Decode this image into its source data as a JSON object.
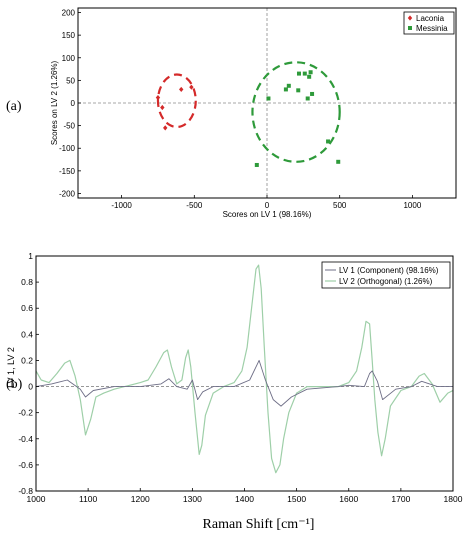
{
  "panel_labels": [
    "(a)",
    "(b)"
  ],
  "colors": {
    "laconia": "#d42a2a",
    "messinia": "#2e9a3a",
    "lv1": "#6e6e86",
    "lv2": "#9ecfa8",
    "axis": "#000000",
    "zero_line": "#8a8a8a"
  },
  "chart_data": [
    {
      "type": "scatter",
      "xlabel": "Scores on LV 1 (98.16%)",
      "ylabel": "Scores on LV 2 (1.26%)",
      "xlim": [
        -1300,
        1300
      ],
      "ylim": [
        -210,
        210
      ],
      "xticks": [
        -1000,
        -500,
        0,
        500,
        1000
      ],
      "yticks": [
        200,
        150,
        100,
        50,
        0,
        -50,
        -100,
        -150,
        -200
      ],
      "legend": {
        "position": "top-right",
        "entries": [
          "Laconia",
          "Messinia"
        ]
      },
      "series": [
        {
          "name": "Laconia",
          "marker": "diamond",
          "points": [
            [
              -590,
              30
            ],
            [
              -520,
              35
            ],
            [
              -720,
              -10
            ],
            [
              -750,
              12
            ],
            [
              -700,
              -55
            ]
          ]
        },
        {
          "name": "Messinia",
          "marker": "square",
          "points": [
            [
              10,
              10
            ],
            [
              130,
              30
            ],
            [
              150,
              38
            ],
            [
              220,
              65
            ],
            [
              260,
              65
            ],
            [
              290,
              58
            ],
            [
              300,
              68
            ],
            [
              215,
              28
            ],
            [
              280,
              10
            ],
            [
              310,
              20
            ],
            [
              420,
              -85
            ],
            [
              490,
              -130
            ],
            [
              -70,
              -137
            ]
          ]
        }
      ],
      "confidence_ellipses": [
        {
          "series": "Laconia",
          "center": [
            -620,
            5
          ],
          "semi_axes": [
            130,
            58
          ]
        },
        {
          "series": "Messinia",
          "center": [
            200,
            -20
          ],
          "semi_axes": [
            300,
            110
          ]
        }
      ]
    },
    {
      "type": "line",
      "xlabel": "Raman Shift [cm⁻¹]",
      "ylabel": "LV 1, LV 2",
      "xlim": [
        1000,
        1800
      ],
      "ylim": [
        -0.8,
        1.0
      ],
      "xticks": [
        1000,
        1100,
        1200,
        1300,
        1400,
        1500,
        1600,
        1700,
        1800
      ],
      "yticks": [
        1,
        0.8,
        0.6,
        0.4,
        0.2,
        0,
        -0.2,
        -0.4,
        -0.6,
        -0.8
      ],
      "legend": {
        "position": "top-right",
        "entries": [
          "LV 1 (Component) (98.16%)",
          "LV 2 (Orthogonal) (1.26%)"
        ]
      },
      "series": [
        {
          "name": "LV 1 (Component) (98.16%)",
          "x": [
            1000,
            1030,
            1060,
            1085,
            1095,
            1110,
            1150,
            1200,
            1240,
            1255,
            1270,
            1290,
            1300,
            1310,
            1320,
            1340,
            1380,
            1410,
            1428,
            1440,
            1455,
            1470,
            1490,
            1520,
            1580,
            1600,
            1630,
            1640,
            1645,
            1655,
            1665,
            1690,
            1720,
            1740,
            1770,
            1800
          ],
          "y": [
            0.0,
            0.02,
            0.05,
            -0.02,
            -0.08,
            -0.03,
            0.0,
            0.0,
            0.02,
            0.06,
            0.0,
            -0.02,
            0.05,
            -0.1,
            -0.04,
            0.0,
            0.0,
            0.05,
            0.2,
            0.05,
            -0.1,
            -0.15,
            -0.08,
            -0.02,
            0.0,
            0.01,
            0.0,
            0.1,
            0.12,
            0.04,
            -0.1,
            -0.02,
            0.0,
            0.04,
            0.0,
            0.0
          ]
        },
        {
          "name": "LV 2 (Orthogonal) (1.26%)",
          "x": [
            1000,
            1010,
            1025,
            1040,
            1055,
            1065,
            1075,
            1085,
            1095,
            1105,
            1115,
            1130,
            1150,
            1170,
            1200,
            1215,
            1230,
            1245,
            1252,
            1260,
            1270,
            1280,
            1287,
            1292,
            1297,
            1305,
            1313,
            1318,
            1325,
            1340,
            1360,
            1380,
            1395,
            1405,
            1415,
            1422,
            1427,
            1432,
            1438,
            1445,
            1452,
            1460,
            1468,
            1475,
            1485,
            1500,
            1520,
            1550,
            1580,
            1600,
            1615,
            1625,
            1633,
            1640,
            1645,
            1650,
            1656,
            1663,
            1670,
            1680,
            1700,
            1720,
            1735,
            1745,
            1760,
            1775,
            1790,
            1800
          ],
          "y": [
            0.12,
            0.05,
            0.03,
            0.1,
            0.18,
            0.2,
            0.08,
            -0.1,
            -0.37,
            -0.25,
            -0.08,
            -0.05,
            -0.02,
            0.0,
            0.03,
            0.05,
            0.15,
            0.26,
            0.28,
            0.15,
            0.02,
            0.05,
            0.22,
            0.28,
            0.15,
            -0.2,
            -0.52,
            -0.45,
            -0.22,
            -0.05,
            0.0,
            0.03,
            0.12,
            0.3,
            0.65,
            0.9,
            0.93,
            0.75,
            0.3,
            -0.2,
            -0.55,
            -0.66,
            -0.6,
            -0.4,
            -0.2,
            -0.05,
            0.0,
            0.0,
            0.0,
            0.03,
            0.12,
            0.3,
            0.5,
            0.48,
            0.2,
            -0.1,
            -0.35,
            -0.53,
            -0.4,
            -0.15,
            -0.03,
            0.0,
            0.08,
            0.1,
            0.02,
            -0.12,
            -0.05,
            -0.03
          ]
        }
      ]
    }
  ]
}
